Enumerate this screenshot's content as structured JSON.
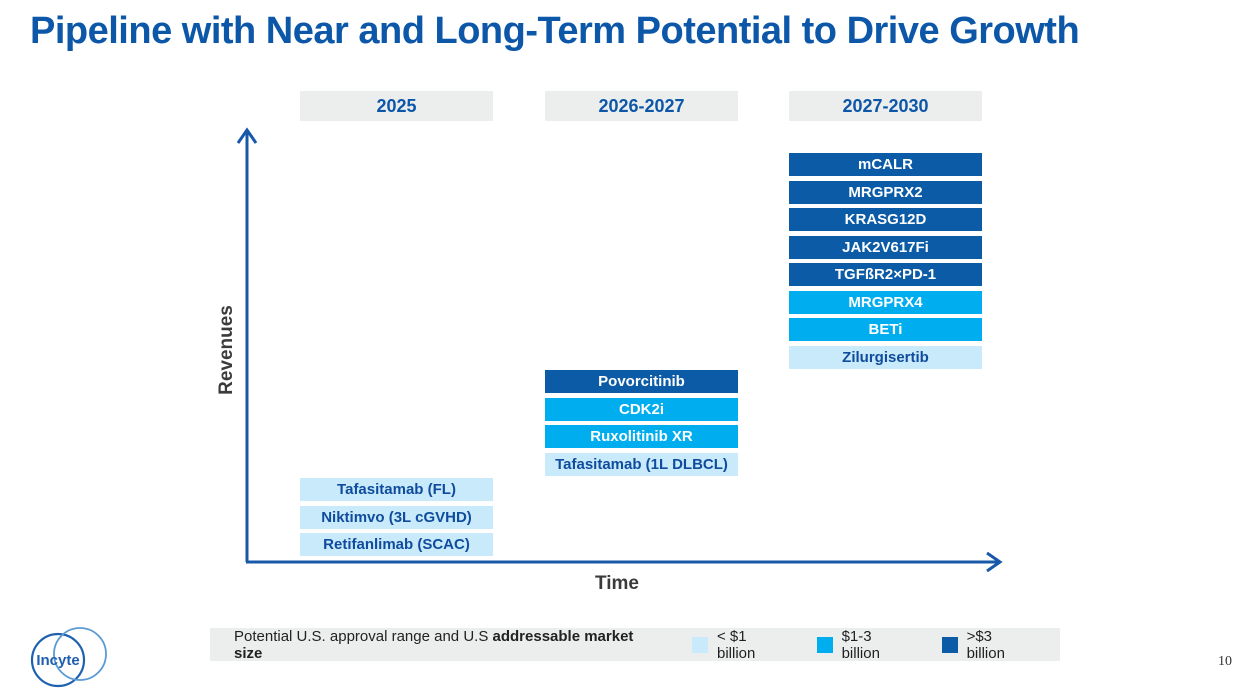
{
  "slide": {
    "title": "Pipeline with Near and Long-Term Potential to Drive Growth",
    "page_number": "10",
    "logo_text": "Incyte"
  },
  "colors": {
    "title_blue": "#0D57A9",
    "bar_dark_blue": "#0B5BA6",
    "bar_cyan": "#00AEEF",
    "bar_light_blue": "#C9EAFA",
    "bar_text_on_light": "#0F4C9E",
    "header_gray": "#ECEEEE",
    "axis_blue": "#1858A8",
    "axis_label_gray": "#3B3B3B"
  },
  "chart_data": {
    "type": "bar",
    "title": "Pipeline with Near and Long-Term Potential to Drive Growth",
    "xlabel": "Time",
    "ylabel": "Revenues",
    "x_categories": [
      "2025",
      "2026-2027",
      "2027-2030"
    ],
    "legend_position": "bottom",
    "legend_title_regular": "Potential U.S. approval range and U.S ",
    "legend_title_bold": "addressable market size",
    "legend": [
      {
        "label": "< $1 billion",
        "tier": "light",
        "color": "#C9EAFA"
      },
      {
        "label": "$1-3 billion",
        "tier": "mid",
        "color": "#00AEEF"
      },
      {
        "label": ">$3 billion",
        "tier": "dark",
        "color": "#0B5BA6"
      }
    ],
    "groups": [
      {
        "period": "2025",
        "items": [
          {
            "name": "Tafasitamab (FL)",
            "tier": "light",
            "market_size": "< $1 billion"
          },
          {
            "name": "Niktimvo (3L cGVHD)",
            "tier": "light",
            "market_size": "< $1 billion"
          },
          {
            "name": "Retifanlimab (SCAC)",
            "tier": "light",
            "market_size": "< $1 billion"
          }
        ]
      },
      {
        "period": "2026-2027",
        "items": [
          {
            "name": "Povorcitinib",
            "tier": "dark",
            "market_size": ">$3 billion"
          },
          {
            "name": "CDK2i",
            "tier": "mid",
            "market_size": "$1-3 billion"
          },
          {
            "name": "Ruxolitinib XR",
            "tier": "mid",
            "market_size": "$1-3 billion"
          },
          {
            "name": "Tafasitamab (1L DLBCL)",
            "tier": "light",
            "market_size": "< $1 billion"
          }
        ]
      },
      {
        "period": "2027-2030",
        "items": [
          {
            "name": "mCALR",
            "tier": "dark",
            "market_size": ">$3 billion"
          },
          {
            "name": "MRGPRX2",
            "tier": "dark",
            "market_size": ">$3 billion"
          },
          {
            "name": "KRASG12D",
            "tier": "dark",
            "market_size": ">$3 billion"
          },
          {
            "name": "JAK2V617Fi",
            "tier": "dark",
            "market_size": ">$3 billion"
          },
          {
            "name": "TGFßR2×PD-1",
            "tier": "dark",
            "market_size": ">$3 billion"
          },
          {
            "name": "MRGPRX4",
            "tier": "mid",
            "market_size": "$1-3 billion"
          },
          {
            "name": "BETi",
            "tier": "mid",
            "market_size": "$1-3 billion"
          },
          {
            "name": "Zilurgisertib",
            "tier": "light",
            "market_size": "< $1 billion"
          }
        ]
      }
    ]
  }
}
